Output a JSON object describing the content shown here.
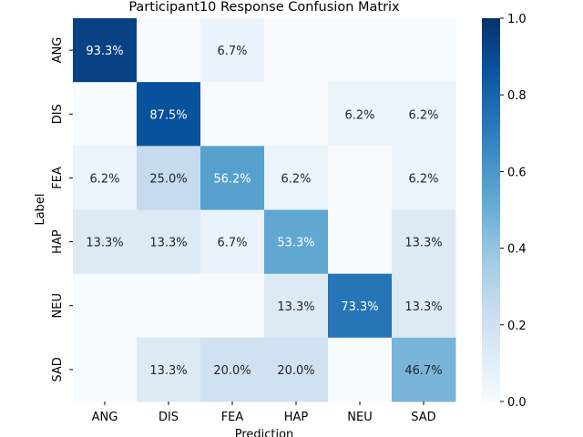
{
  "chart_data": {
    "type": "heatmap",
    "title": "Participant10 Response Confusion Matrix",
    "xlabel": "Prediction",
    "ylabel": "Label",
    "x_categories": [
      "ANG",
      "DIS",
      "FEA",
      "HAP",
      "NEU",
      "SAD"
    ],
    "y_categories": [
      "ANG",
      "DIS",
      "FEA",
      "HAP",
      "NEU",
      "SAD"
    ],
    "values": [
      [
        0.933,
        0.0,
        0.067,
        0.0,
        0.0,
        0.0
      ],
      [
        0.0,
        0.875,
        0.0,
        0.0,
        0.062,
        0.062
      ],
      [
        0.062,
        0.25,
        0.562,
        0.062,
        0.0,
        0.062
      ],
      [
        0.133,
        0.133,
        0.067,
        0.533,
        0.0,
        0.133
      ],
      [
        0.0,
        0.0,
        0.0,
        0.133,
        0.733,
        0.133
      ],
      [
        0.0,
        0.133,
        0.2,
        0.2,
        0.0,
        0.467
      ]
    ],
    "cell_labels": [
      [
        "93.3%",
        "",
        "6.7%",
        "",
        "",
        ""
      ],
      [
        "",
        "87.5%",
        "",
        "",
        "6.2%",
        "6.2%"
      ],
      [
        "6.2%",
        "25.0%",
        "56.2%",
        "6.2%",
        "",
        "6.2%"
      ],
      [
        "13.3%",
        "13.3%",
        "6.7%",
        "53.3%",
        "",
        "13.3%"
      ],
      [
        "",
        "",
        "",
        "13.3%",
        "73.3%",
        "13.3%"
      ],
      [
        "",
        "13.3%",
        "20.0%",
        "20.0%",
        "",
        "46.7%"
      ]
    ],
    "colorbar": {
      "range": [
        0.0,
        1.0
      ],
      "ticks": [
        "0.0",
        "0.2",
        "0.4",
        "0.6",
        "0.8",
        "1.0"
      ],
      "colormap": "Blues",
      "colors": [
        "#f7fbff",
        "#deebf7",
        "#c6dbef",
        "#9ecae1",
        "#6baed6",
        "#4292c6",
        "#2171b5",
        "#08519c",
        "#08306b"
      ]
    }
  }
}
